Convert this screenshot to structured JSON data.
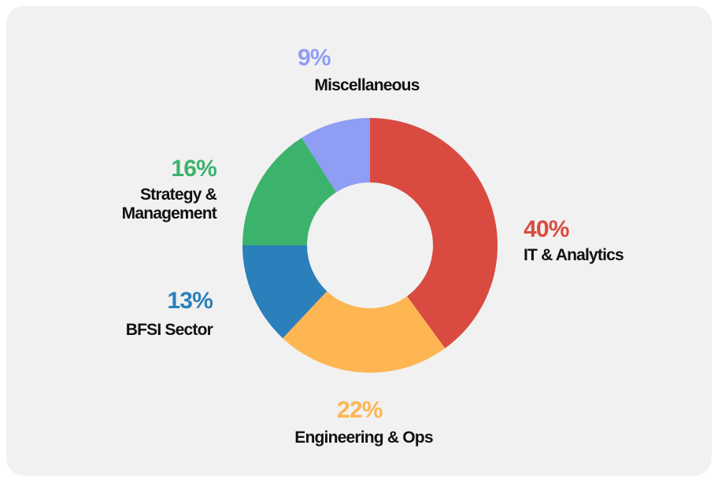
{
  "chart_data": {
    "type": "pie",
    "categories": [
      "IT & Analytics",
      "Engineering & Ops",
      "BFSI Sector",
      "Strategy & Management",
      "Miscellaneous"
    ],
    "values": [
      40,
      22,
      13,
      16,
      9
    ],
    "value_labels": [
      "40%",
      "22%",
      "13%",
      "16%",
      "9%"
    ],
    "colors": [
      "#d94b40",
      "#fdb652",
      "#2b7fba",
      "#3cb36c",
      "#8f9df5"
    ]
  }
}
